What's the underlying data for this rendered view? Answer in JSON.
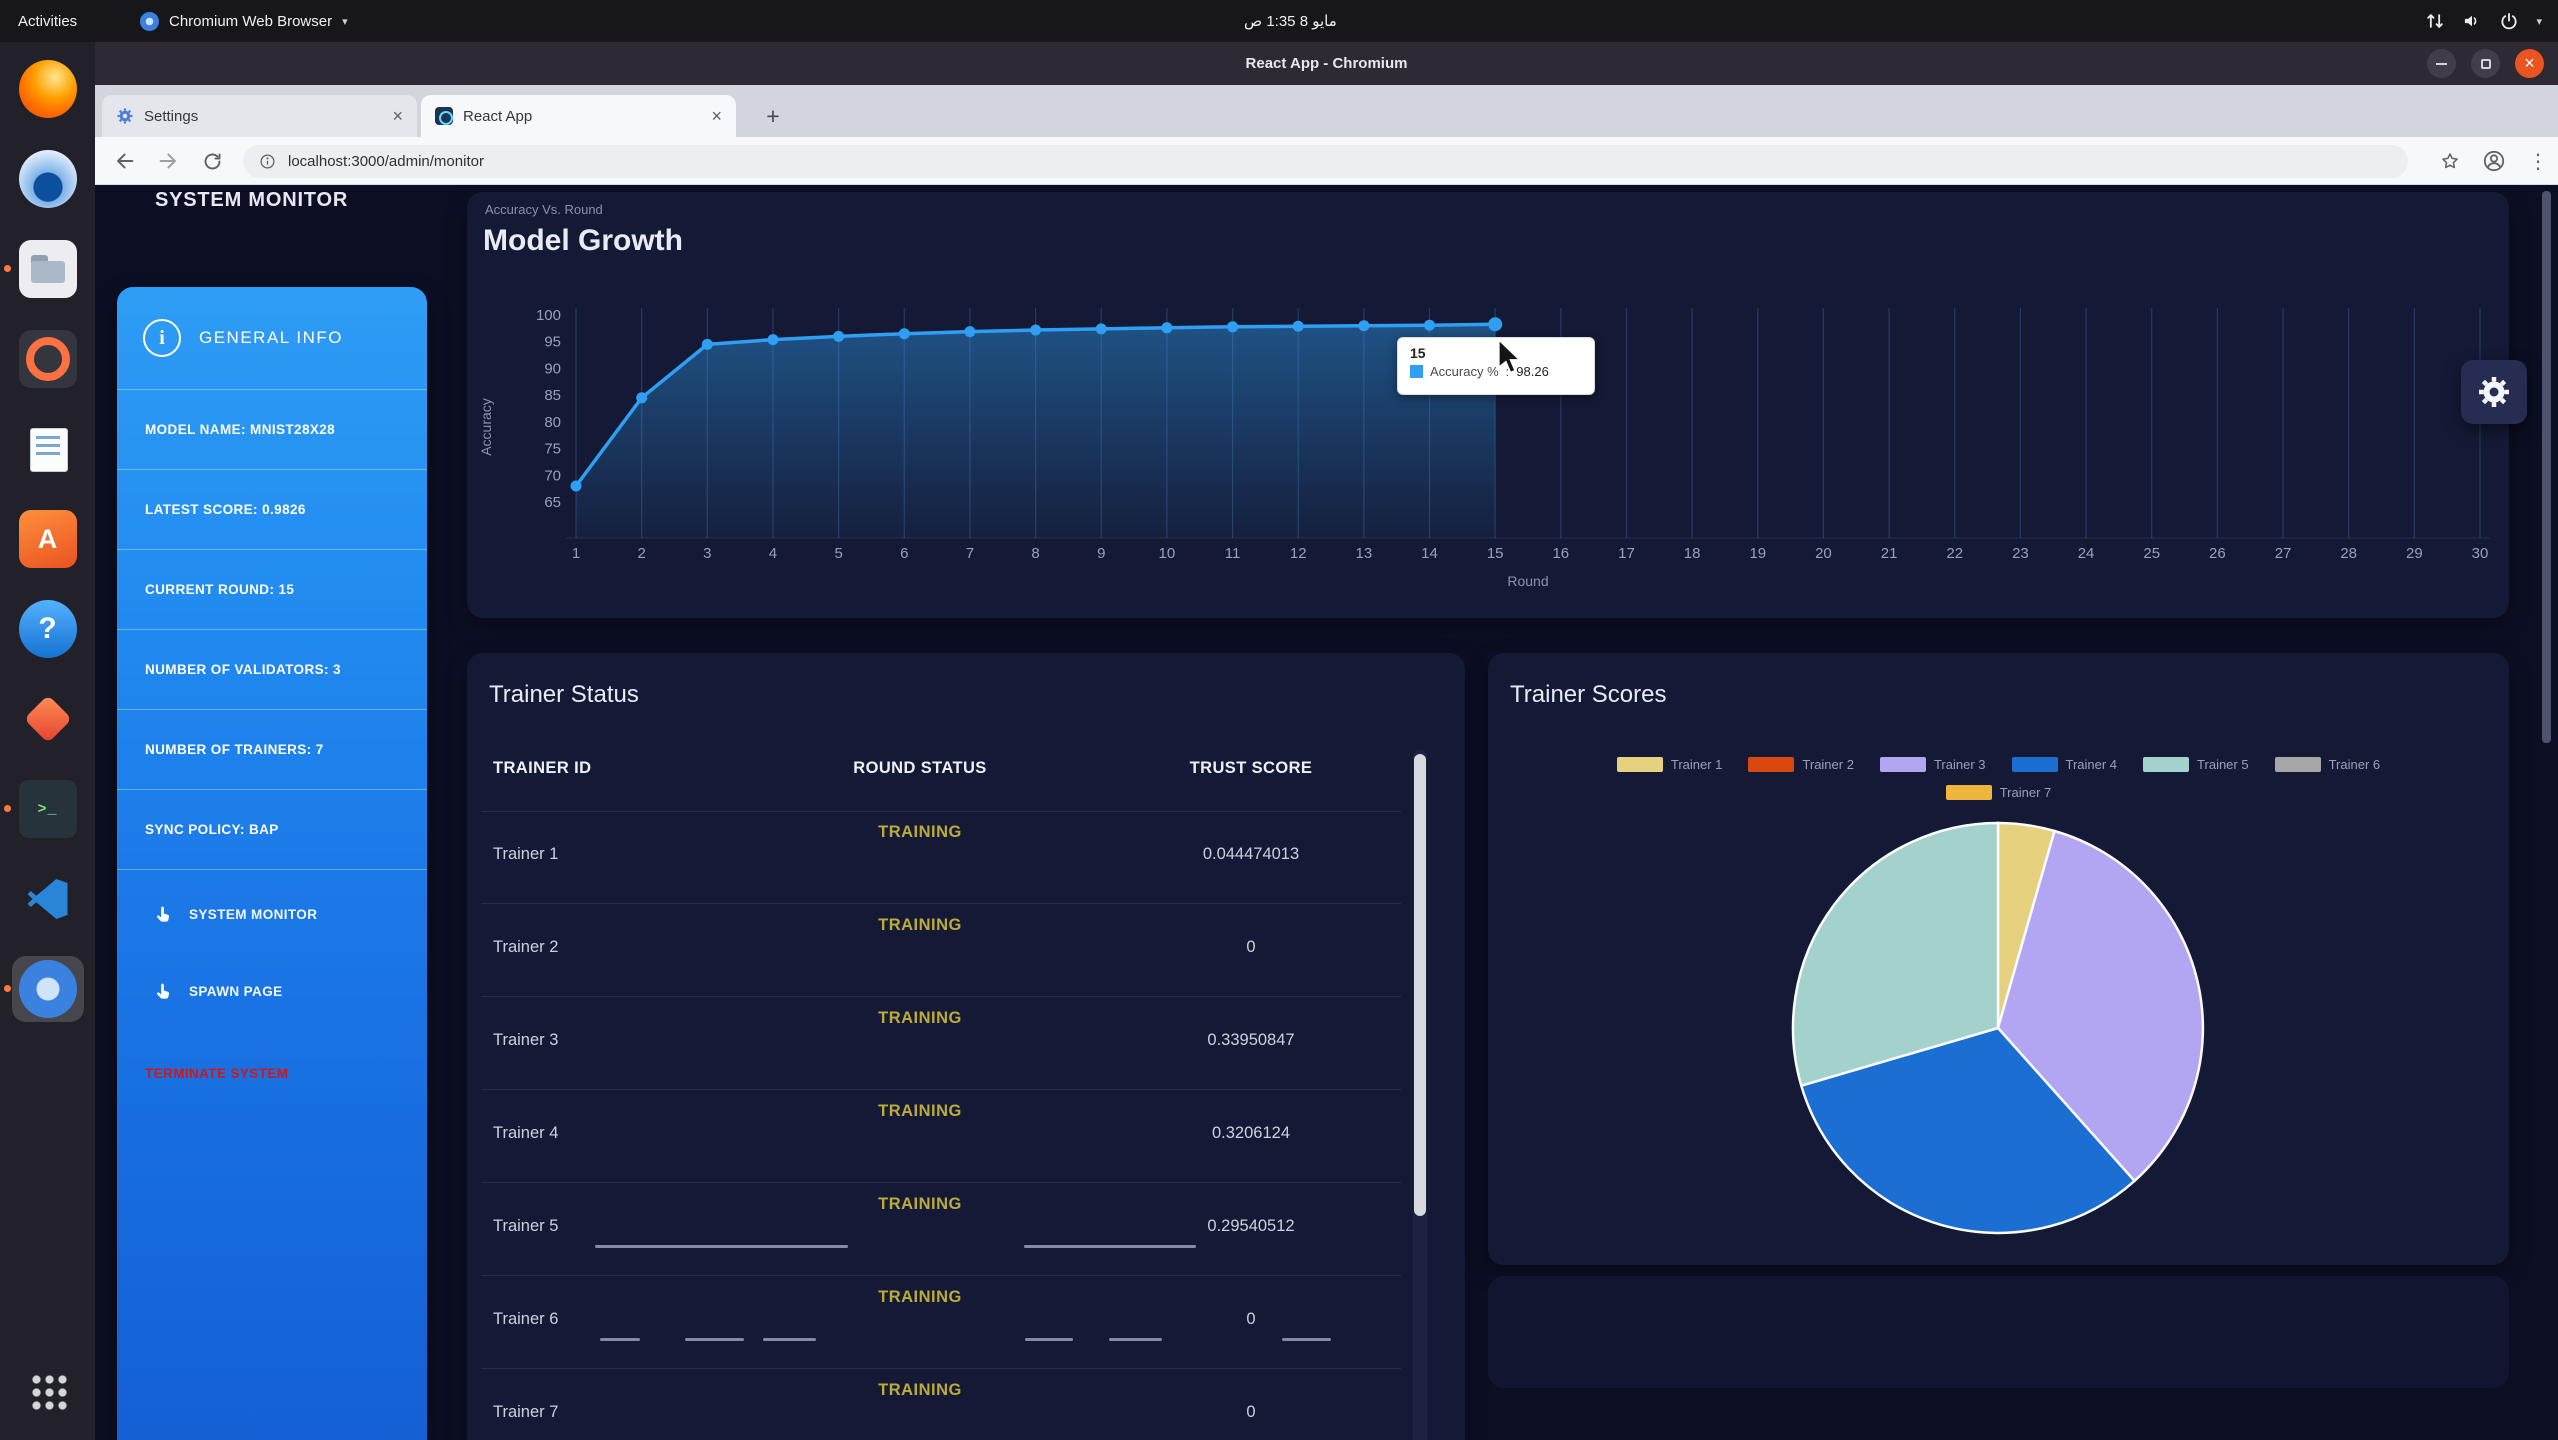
{
  "desktop": {
    "topbar": {
      "activities_label": "Activities",
      "app_menu_label": "Chromium Web Browser",
      "clock": "مايو 8 1:35 ص"
    },
    "dock_items": [
      {
        "id": "firefox",
        "glyph": ""
      },
      {
        "id": "mail",
        "glyph": ""
      },
      {
        "id": "files",
        "glyph": "",
        "running": true
      },
      {
        "id": "media-player",
        "glyph": ""
      },
      {
        "id": "writer",
        "glyph": ""
      },
      {
        "id": "ubuntu-software",
        "glyph": "A"
      },
      {
        "id": "help",
        "glyph": "?"
      },
      {
        "id": "draw",
        "glyph": ""
      },
      {
        "id": "terminal",
        "glyph": ">_",
        "running": true
      },
      {
        "id": "vscode",
        "glyph": ""
      },
      {
        "id": "chromium",
        "glyph": "",
        "running": true,
        "active": true
      },
      {
        "id": "app-grid",
        "glyph": ""
      }
    ]
  },
  "browser": {
    "window_title": "React App - Chromium",
    "tabs": [
      {
        "label": "Settings",
        "active": false
      },
      {
        "label": "React App",
        "active": true
      }
    ],
    "new_tab_label": "+",
    "url": "localhost:3000/admin/monitor"
  },
  "page": {
    "header": "SYSTEM MONITOR",
    "sidebar": {
      "title": "GENERAL INFO",
      "info_items": [
        "MODEL NAME: MNIST28X28",
        "LATEST SCORE: 0.9826",
        "CURRENT ROUND: 15",
        "NUMBER OF VALIDATORS: 3",
        "NUMBER OF TRAINERS: 7",
        "SYNC POLICY: BAP"
      ],
      "nav_links": [
        "SYSTEM MONITOR",
        "SPAWN PAGE"
      ],
      "terminate_label": "TERMINATE SYSTEM",
      "terminate_color": "#cf1717"
    },
    "trainer_status": {
      "title": "Trainer Status",
      "columns": [
        "TRAINER ID",
        "ROUND STATUS",
        "TRUST SCORE"
      ],
      "status_color": "#bcab3b",
      "rows": [
        {
          "id": "Trainer 1",
          "status": "TRAINING",
          "score": "0.044474013"
        },
        {
          "id": "Trainer 2",
          "status": "TRAINING",
          "score": "0"
        },
        {
          "id": "Trainer 3",
          "status": "TRAINING",
          "score": "0.33950847"
        },
        {
          "id": "Trainer 4",
          "status": "TRAINING",
          "score": "0.3206124"
        },
        {
          "id": "Trainer 5",
          "status": "TRAINING",
          "score": "0.29540512"
        },
        {
          "id": "Trainer 6",
          "status": "TRAINING",
          "score": "0"
        },
        {
          "id": "Trainer 7",
          "status": "TRAINING",
          "score": "0"
        }
      ]
    },
    "trainer_scores_title": "Trainer Scores"
  },
  "chart_data": [
    {
      "type": "line",
      "title": "Model Growth",
      "subtitle": "Accuracy Vs. Round",
      "xlabel": "Round",
      "ylabel": "Accuracy",
      "xlim": [
        1,
        30
      ],
      "ylim": [
        65,
        100
      ],
      "xticks": [
        1,
        2,
        3,
        4,
        5,
        6,
        7,
        8,
        9,
        10,
        11,
        12,
        13,
        14,
        15,
        16,
        17,
        18,
        19,
        20,
        21,
        22,
        23,
        24,
        25,
        26,
        27,
        28,
        29,
        30
      ],
      "yticks": [
        100,
        95,
        90,
        85,
        80,
        75,
        70,
        65
      ],
      "line_color": "#2e9ff2",
      "grid": "vertical",
      "series": [
        {
          "name": "Accuracy %",
          "x": [
            1,
            2,
            3,
            4,
            5,
            6,
            7,
            8,
            9,
            10,
            11,
            12,
            13,
            14,
            15
          ],
          "values": [
            68,
            84.5,
            94.5,
            95.4,
            96,
            96.5,
            96.9,
            97.2,
            97.4,
            97.6,
            97.8,
            97.9,
            98,
            98.1,
            98.26
          ]
        }
      ],
      "tooltip": {
        "x": "15",
        "label": "Accuracy %",
        "value": "98.26"
      }
    },
    {
      "type": "pie",
      "title": "Trainer Scores",
      "labels": [
        "Trainer 1",
        "Trainer 2",
        "Trainer 3",
        "Trainer 4",
        "Trainer 5",
        "Trainer 6",
        "Trainer 7"
      ],
      "values": [
        0.044474013,
        0,
        0.33950847,
        0.3206124,
        0.29540512,
        0,
        0
      ],
      "colors": [
        "#e6d17e",
        "#d9480f",
        "#b2a5f1",
        "#1b6fd2",
        "#a3d2cd",
        "#a6a6a6",
        "#efb63e"
      ],
      "legend_position": "top"
    }
  ]
}
